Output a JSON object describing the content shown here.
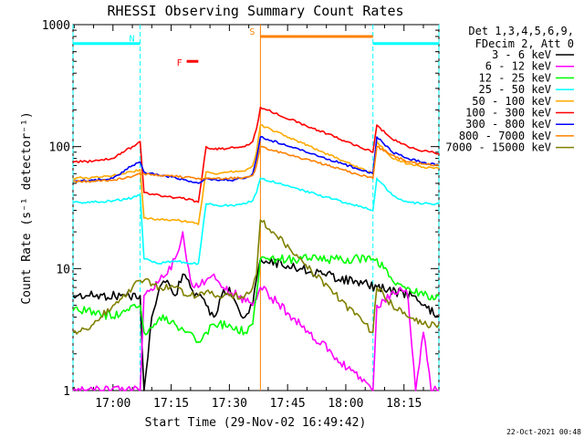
{
  "chart_data": {
    "type": "line",
    "title": "RHESSI Observing Summary Count Rates",
    "xlabel": "Start Time (29-Nov-02 16:49:42)",
    "ylabel": "Count Rate (s⁻¹ detector⁻¹)",
    "y_scale": "log",
    "ylim": [
      1,
      1000
    ],
    "xlim": [
      "16:49:42",
      "18:24:00"
    ],
    "x_ticks": [
      "17:00",
      "17:15",
      "17:30",
      "17:45",
      "18:00",
      "18:15"
    ],
    "y_ticks": [
      "1",
      "10",
      "100",
      "1000"
    ],
    "grid": false,
    "legend_position": "right",
    "legend_header": [
      "Det 1,3,4,5,6,9,",
      "FDecim 2, Att 0"
    ],
    "series": [
      {
        "name": "3 - 6 keV",
        "color": "#000000",
        "x": [
          "16:49:42",
          "17:02",
          "17:07",
          "17:08",
          "17:10",
          "17:12",
          "17:14",
          "17:16",
          "17:18",
          "17:20",
          "17:22",
          "17:24",
          "17:26",
          "17:28",
          "17:30",
          "17:32",
          "17:34",
          "17:36",
          "17:38",
          "18:17",
          "18:20",
          "18:24"
        ],
        "y": [
          6,
          6,
          6,
          1,
          4,
          7,
          8,
          6,
          9,
          7,
          6,
          5,
          4,
          6,
          7,
          5,
          4,
          5,
          12,
          6,
          5,
          4
        ]
      },
      {
        "name": "6 - 12 keV",
        "color": "#ff00ff",
        "x": [
          "16:49:42",
          "17:07",
          "17:08",
          "17:12",
          "17:14",
          "17:16",
          "17:18",
          "17:20",
          "17:22",
          "17:24",
          "17:26",
          "17:28",
          "17:32",
          "17:36",
          "17:38",
          "18:07",
          "18:08",
          "18:14",
          "18:16",
          "18:18",
          "18:20",
          "18:22",
          "18:24"
        ],
        "y": [
          1,
          1,
          6,
          8,
          9,
          12,
          20,
          8,
          7,
          8,
          9,
          7,
          6,
          5,
          7,
          1,
          5,
          7,
          6,
          1,
          3,
          1,
          1
        ]
      },
      {
        "name": "12 - 25 keV",
        "color": "#00ff00",
        "x": [
          "16:49:42",
          "16:55",
          "17:00",
          "17:05",
          "17:07",
          "17:08",
          "17:12",
          "17:16",
          "17:20",
          "17:22",
          "17:24",
          "17:26",
          "17:30",
          "17:34",
          "17:36",
          "17:38",
          "18:07",
          "18:08",
          "18:12",
          "18:16",
          "18:20",
          "18:24"
        ],
        "y": [
          4.5,
          4.5,
          4,
          5,
          5,
          3,
          4,
          3.5,
          3,
          2.5,
          3,
          3.5,
          3.5,
          3,
          3.5,
          12,
          12,
          12,
          8,
          7,
          6,
          6
        ]
      },
      {
        "name": "25 - 50 keV",
        "color": "#00ffff",
        "x": [
          "16:49:42",
          "16:55",
          "17:00",
          "17:05",
          "17:07",
          "17:08",
          "17:12",
          "17:16",
          "17:20",
          "17:22",
          "17:24",
          "17:26",
          "17:30",
          "17:34",
          "17:36",
          "17:37",
          "17:38",
          "18:07",
          "18:08",
          "18:12",
          "18:16",
          "18:20",
          "18:24"
        ],
        "y": [
          35,
          35,
          36,
          38,
          40,
          12,
          11,
          11.5,
          11,
          11,
          34,
          33,
          33,
          34,
          36,
          42,
          55,
          30,
          55,
          40,
          35,
          34,
          34
        ]
      },
      {
        "name": "50 - 100 keV",
        "color": "#ffaa00",
        "x": [
          "16:49:42",
          "16:55",
          "17:00",
          "17:05",
          "17:07",
          "17:08",
          "17:12",
          "17:16",
          "17:20",
          "17:22",
          "17:24",
          "17:26",
          "17:30",
          "17:34",
          "17:36",
          "17:37",
          "17:38",
          "18:07",
          "18:08",
          "18:12",
          "18:16",
          "18:20",
          "18:24"
        ],
        "y": [
          55,
          56,
          58,
          62,
          65,
          26,
          25,
          25,
          24,
          23,
          62,
          60,
          62,
          63,
          70,
          90,
          150,
          60,
          110,
          80,
          72,
          68,
          66
        ]
      },
      {
        "name": "100 - 300 keV",
        "color": "#ff0000",
        "x": [
          "16:49:42",
          "16:55",
          "17:00",
          "17:05",
          "17:07",
          "17:08",
          "17:12",
          "17:16",
          "17:20",
          "17:22",
          "17:24",
          "17:26",
          "17:30",
          "17:34",
          "17:36",
          "17:37",
          "17:38",
          "18:07",
          "18:08",
          "18:12",
          "18:16",
          "18:20",
          "18:24"
        ],
        "y": [
          75,
          76,
          80,
          100,
          110,
          42,
          40,
          38,
          37,
          35,
          100,
          95,
          97,
          100,
          110,
          140,
          210,
          90,
          150,
          115,
          100,
          92,
          88
        ]
      },
      {
        "name": "300 - 800 keV",
        "color": "#0000ff",
        "x": [
          "16:49:42",
          "16:55",
          "17:00",
          "17:05",
          "17:07",
          "17:08",
          "17:12",
          "17:16",
          "17:20",
          "17:22",
          "17:24",
          "17:26",
          "17:30",
          "17:34",
          "17:36",
          "17:37",
          "17:38",
          "18:07",
          "18:08",
          "18:12",
          "18:16",
          "18:20",
          "18:24"
        ],
        "y": [
          52,
          53,
          55,
          70,
          75,
          62,
          58,
          56,
          52,
          50,
          55,
          54,
          53,
          55,
          60,
          80,
          120,
          60,
          120,
          90,
          80,
          74,
          70
        ]
      },
      {
        "name": "800 - 7000 keV",
        "color": "#ff8000",
        "x": [
          "16:49:42",
          "16:55",
          "17:00",
          "17:05",
          "17:07",
          "17:08",
          "17:12",
          "17:16",
          "17:20",
          "17:22",
          "17:24",
          "17:26",
          "17:30",
          "17:34",
          "17:36",
          "17:37",
          "17:38",
          "18:07",
          "18:08",
          "18:12",
          "18:16",
          "18:20",
          "18:24"
        ],
        "y": [
          52,
          52,
          53,
          57,
          60,
          60,
          58,
          57,
          56,
          55,
          55,
          55,
          55,
          56,
          58,
          70,
          100,
          55,
          100,
          85,
          75,
          72,
          70
        ]
      },
      {
        "name": "7000 - 15000 keV",
        "color": "#808000",
        "x": [
          "16:49:42",
          "16:55",
          "17:00",
          "17:05",
          "17:07",
          "17:08",
          "17:12",
          "17:16",
          "17:20",
          "17:22",
          "17:24",
          "17:26",
          "17:30",
          "17:34",
          "17:36",
          "17:37",
          "17:38",
          "18:07",
          "18:08",
          "18:12",
          "18:16",
          "18:20",
          "18:24"
        ],
        "y": [
          3,
          3.5,
          5,
          7,
          8,
          8,
          7,
          7,
          6,
          6,
          6.5,
          6,
          6,
          6,
          7,
          9,
          25,
          3,
          7,
          5,
          4,
          3.5,
          3.5
        ]
      }
    ],
    "bars": [
      {
        "label": "N",
        "color": "#00ffff",
        "y": 700,
        "segments": [
          [
            "16:49:42",
            "17:07"
          ],
          [
            "18:07",
            "18:24"
          ]
        ]
      },
      {
        "label": "S",
        "color": "#ff8000",
        "y": 800,
        "segments": [
          [
            "17:38",
            "18:07"
          ]
        ]
      },
      {
        "label": "F",
        "color": "#ff0000",
        "y": 500,
        "segments": [
          [
            "17:19",
            "17:22"
          ]
        ]
      }
    ],
    "vlines": [
      {
        "x": "16:49:42",
        "color": "#00ffff",
        "style": "dashed"
      },
      {
        "x": "17:07",
        "color": "#00ffff",
        "style": "dashed"
      },
      {
        "x": "17:38",
        "color": "#ff8000",
        "style": "solid"
      },
      {
        "x": "18:07",
        "color": "#00ffff",
        "style": "dashed"
      },
      {
        "x": "18:24",
        "color": "#00ffff",
        "style": "dashed"
      }
    ]
  },
  "footer": {
    "timestamp": "22-Oct-2021 00:48"
  }
}
